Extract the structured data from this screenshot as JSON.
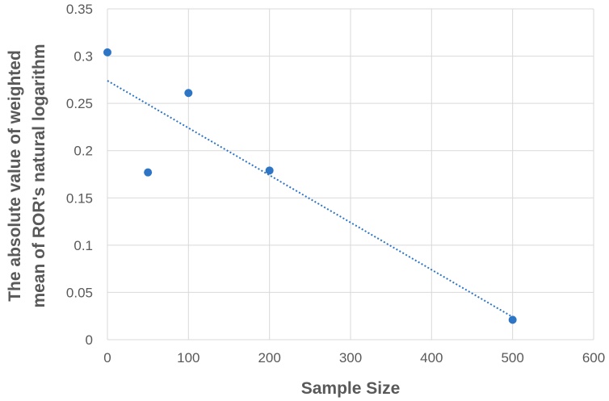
{
  "chart_data": {
    "type": "scatter",
    "title": "",
    "xlabel": "Sample Size",
    "ylabel_lines": [
      "The absolute value of weighted",
      "mean of ROR's natural logarithm"
    ],
    "xlim": [
      0,
      600
    ],
    "ylim": [
      0,
      0.35
    ],
    "x_ticks": [
      0,
      100,
      200,
      300,
      400,
      500,
      600
    ],
    "x_tick_labels": [
      "0",
      "100",
      "200",
      "300",
      "400",
      "500",
      "600"
    ],
    "y_ticks": [
      0,
      0.05,
      0.1,
      0.15,
      0.2,
      0.25,
      0.3,
      0.35
    ],
    "y_tick_labels": [
      "0",
      "0.05",
      "0.1",
      "0.15",
      "0.2",
      "0.25",
      "0.3",
      "0.35"
    ],
    "grid": "vertical-and-horizontal",
    "points": [
      {
        "x": 0,
        "y": 0.304
      },
      {
        "x": 50,
        "y": 0.177
      },
      {
        "x": 100,
        "y": 0.261
      },
      {
        "x": 200,
        "y": 0.179
      },
      {
        "x": 500,
        "y": 0.021
      }
    ],
    "trendline": {
      "type": "linear",
      "style": "dotted",
      "x": [
        0,
        500
      ],
      "y": [
        0.274,
        0.024
      ]
    },
    "colors": {
      "point": "#2e75c6",
      "trendline": "#2e75c6",
      "grid": "#d9d9d9",
      "text": "#595959"
    }
  }
}
